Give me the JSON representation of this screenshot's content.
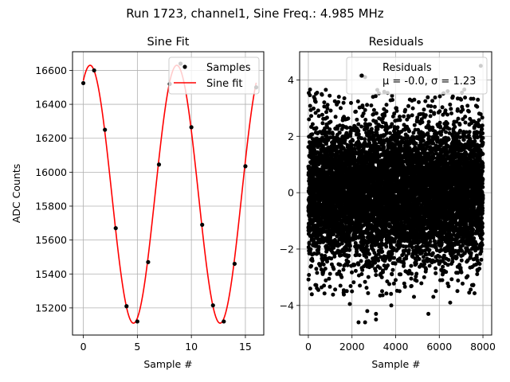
{
  "suptitle": "Run 1723, channel1, Sine Freq.: 4.985 MHz",
  "chart_data": [
    {
      "type": "line",
      "title": "Sine Fit",
      "xlabel": "Sample #",
      "ylabel": "ADC Counts",
      "xlim": [
        -1,
        16.7
      ],
      "ylim": [
        15040,
        16710
      ],
      "xticks": [
        0,
        5,
        10,
        15
      ],
      "yticks": [
        15200,
        15400,
        15600,
        15800,
        16000,
        16200,
        16400,
        16600
      ],
      "grid": true,
      "legend_position": "top-right",
      "series": [
        {
          "name": "Samples",
          "kind": "scatter",
          "color": "#000000",
          "x": [
            0,
            1,
            2,
            3,
            4,
            5,
            6,
            7,
            8,
            9,
            10,
            11,
            12,
            13,
            14,
            15,
            16
          ],
          "y": [
            16525,
            16600,
            16250,
            15670,
            15210,
            15120,
            15470,
            16045,
            16520,
            16640,
            16265,
            15690,
            15215,
            15120,
            15460,
            16035,
            16500
          ]
        },
        {
          "name": "Sine fit",
          "kind": "line",
          "color": "#ff0000",
          "function": {
            "offset": 15870,
            "amplitude": 760,
            "period": 8.02,
            "peak_at": 0.63
          },
          "x_range": [
            0,
            16
          ]
        }
      ]
    },
    {
      "type": "scatter",
      "title": "Residuals",
      "xlabel": "Sample #",
      "ylabel": "",
      "xlim": [
        -400,
        8400
      ],
      "ylim": [
        -5.05,
        5.0
      ],
      "xticks": [
        0,
        2000,
        4000,
        6000,
        8000
      ],
      "yticks": [
        -4,
        -2,
        0,
        2,
        4
      ],
      "grid": true,
      "legend_position": "top-right",
      "series": [
        {
          "name": "Residuals",
          "stats_label": "μ = -0.0, σ = 1.23",
          "color": "#000000",
          "count": 8000,
          "mean": 0.0,
          "std": 1.23,
          "x_range": [
            0,
            8000
          ],
          "outliers": [
            {
              "x": 2400,
              "y": 4.15
            },
            {
              "x": 2600,
              "y": 4.1
            },
            {
              "x": 7900,
              "y": 4.5
            },
            {
              "x": 2300,
              "y": -4.6
            },
            {
              "x": 2600,
              "y": -4.6
            },
            {
              "x": 2700,
              "y": -4.2
            },
            {
              "x": 3100,
              "y": -4.3
            },
            {
              "x": 3800,
              "y": -4.0
            },
            {
              "x": 5500,
              "y": -4.3
            },
            {
              "x": 6500,
              "y": -3.9
            },
            {
              "x": 1900,
              "y": -3.95
            },
            {
              "x": 3100,
              "y": -4.5
            },
            {
              "x": 800,
              "y": 3.65
            },
            {
              "x": 1400,
              "y": 3.4
            },
            {
              "x": 7000,
              "y": 3.3
            }
          ]
        }
      ]
    }
  ]
}
